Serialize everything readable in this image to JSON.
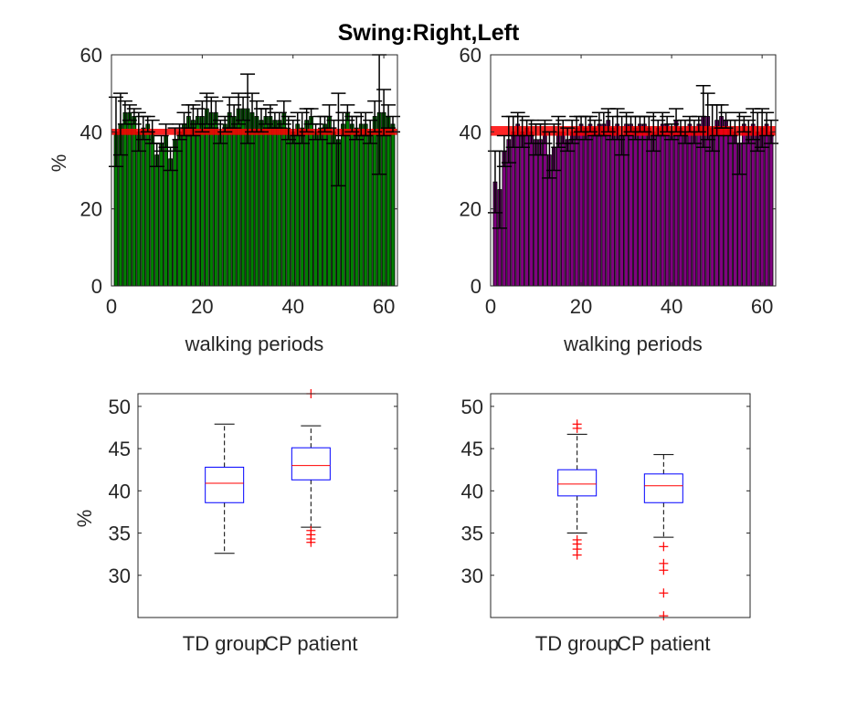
{
  "figure": {
    "title": "Swing:Right,Left"
  },
  "colors": {
    "right_bars": "#008000",
    "left_bars": "#800080",
    "mean_band": "#ff0000",
    "box": "#0000ff",
    "median": "#ff0000",
    "outlier": "#ff0000",
    "whisker": "#000000",
    "errorbar": "#000000"
  },
  "chart_data": [
    {
      "type": "bar",
      "panel": "top-left",
      "title": "",
      "xlabel": "walking periods",
      "ylabel": "%",
      "xlim": [
        0,
        63
      ],
      "ylim": [
        0,
        60
      ],
      "xticks": [
        0,
        20,
        40,
        60
      ],
      "yticks": [
        0,
        20,
        40,
        60
      ],
      "reference_band": {
        "low": 39.2,
        "high": 40.8
      },
      "x": [
        1,
        2,
        3,
        4,
        5,
        6,
        7,
        8,
        9,
        10,
        11,
        12,
        13,
        14,
        15,
        16,
        17,
        18,
        19,
        20,
        21,
        22,
        23,
        24,
        25,
        26,
        27,
        28,
        29,
        30,
        31,
        32,
        33,
        34,
        35,
        36,
        37,
        38,
        39,
        40,
        41,
        42,
        43,
        44,
        45,
        46,
        47,
        48,
        49,
        50,
        51,
        52,
        53,
        54,
        55,
        56,
        57,
        58,
        59,
        60,
        61,
        62
      ],
      "values": [
        40,
        42,
        45,
        45,
        44,
        40,
        41,
        42,
        40,
        34,
        37,
        39,
        33,
        38,
        40,
        42,
        44,
        43,
        44,
        44,
        46,
        45,
        45,
        40,
        42,
        45,
        44,
        46,
        46,
        46,
        45,
        44,
        43,
        44,
        44,
        43,
        43,
        45,
        41,
        40,
        42,
        41,
        43,
        44,
        40,
        41,
        42,
        44,
        40,
        38,
        42,
        45,
        42,
        41,
        42,
        42,
        40,
        44,
        45,
        45,
        44,
        42
      ],
      "errors": [
        9,
        8,
        3,
        2,
        2,
        5,
        3,
        2,
        3,
        3,
        2,
        3,
        3,
        3,
        2,
        3,
        3,
        4,
        2,
        4,
        4,
        4,
        3,
        3,
        2,
        4,
        3,
        4,
        3,
        9,
        5,
        4,
        3,
        2,
        3,
        2,
        2,
        3,
        3,
        3,
        3,
        4,
        3,
        2,
        2,
        3,
        2,
        3,
        3,
        12,
        3,
        2,
        2,
        3,
        3,
        3,
        3,
        4,
        16,
        6,
        3,
        2
      ]
    },
    {
      "type": "bar",
      "panel": "top-right",
      "title": "",
      "xlabel": "walking periods",
      "ylabel": "",
      "xlim": [
        0,
        63
      ],
      "ylim": [
        0,
        60
      ],
      "xticks": [
        0,
        20,
        40,
        60
      ],
      "yticks": [
        0,
        20,
        40,
        60
      ],
      "reference_band": {
        "low": 39.0,
        "high": 41.5
      },
      "x": [
        1,
        2,
        3,
        4,
        5,
        6,
        7,
        8,
        9,
        10,
        11,
        12,
        13,
        14,
        15,
        16,
        17,
        18,
        19,
        20,
        21,
        22,
        23,
        24,
        25,
        26,
        27,
        28,
        29,
        30,
        31,
        32,
        33,
        34,
        35,
        36,
        37,
        38,
        39,
        40,
        41,
        42,
        43,
        44,
        45,
        46,
        47,
        48,
        49,
        50,
        51,
        52,
        53,
        54,
        55,
        56,
        57,
        58,
        59,
        60,
        61,
        62
      ],
      "values": [
        27,
        25,
        35,
        38,
        40,
        42,
        40,
        41,
        40,
        38,
        38,
        40,
        34,
        36,
        40,
        40,
        38,
        40,
        41,
        42,
        41,
        42,
        41,
        42,
        42,
        43,
        41,
        42,
        39,
        42,
        42,
        41,
        42,
        42,
        41,
        40,
        41,
        42,
        42,
        40,
        43,
        41,
        40,
        42,
        40,
        42,
        44,
        44,
        41,
        43,
        44,
        43,
        41,
        40,
        37,
        42,
        40,
        42,
        40,
        41,
        42,
        40
      ],
      "errors": [
        8,
        10,
        4,
        6,
        4,
        3,
        4,
        2,
        3,
        4,
        4,
        3,
        6,
        6,
        4,
        3,
        3,
        3,
        3,
        2,
        3,
        2,
        2,
        3,
        3,
        3,
        3,
        4,
        5,
        3,
        2,
        3,
        2,
        2,
        3,
        5,
        2,
        3,
        2,
        2,
        3,
        2,
        3,
        2,
        3,
        2,
        8,
        6,
        6,
        4,
        3,
        2,
        2,
        3,
        8,
        2,
        3,
        4,
        5,
        5,
        3,
        3
      ]
    },
    {
      "type": "box",
      "panel": "bottom-left",
      "title": "",
      "xlabel": "",
      "ylabel": "%",
      "ylim": [
        25,
        51.5
      ],
      "yticks": [
        30,
        35,
        40,
        45,
        50
      ],
      "categories": [
        "TD group",
        "CP patient"
      ],
      "boxes": [
        {
          "name": "TD group",
          "q1": 38.6,
          "median": 40.9,
          "q3": 42.8,
          "whisker_low": 32.6,
          "whisker_high": 47.9,
          "outliers": []
        },
        {
          "name": "CP patient",
          "q1": 41.3,
          "median": 43.0,
          "q3": 45.1,
          "whisker_low": 35.7,
          "whisker_high": 47.7,
          "outliers": [
            51.5,
            35.3,
            34.8,
            34.3,
            33.9
          ]
        }
      ]
    },
    {
      "type": "box",
      "panel": "bottom-right",
      "title": "",
      "xlabel": "",
      "ylabel": "",
      "ylim": [
        25,
        51.5
      ],
      "yticks": [
        30,
        35,
        40,
        45,
        50
      ],
      "categories": [
        "TD group",
        "CP patient"
      ],
      "boxes": [
        {
          "name": "TD group",
          "q1": 39.4,
          "median": 40.8,
          "q3": 42.5,
          "whisker_low": 35.0,
          "whisker_high": 46.7,
          "outliers": [
            47.9,
            47.4,
            34.2,
            33.7,
            33.1,
            32.4
          ]
        },
        {
          "name": "CP patient",
          "q1": 38.6,
          "median": 40.6,
          "q3": 42.0,
          "whisker_low": 34.5,
          "whisker_high": 44.3,
          "outliers": [
            33.4,
            31.4,
            30.6,
            27.9,
            25.2
          ]
        }
      ]
    }
  ]
}
